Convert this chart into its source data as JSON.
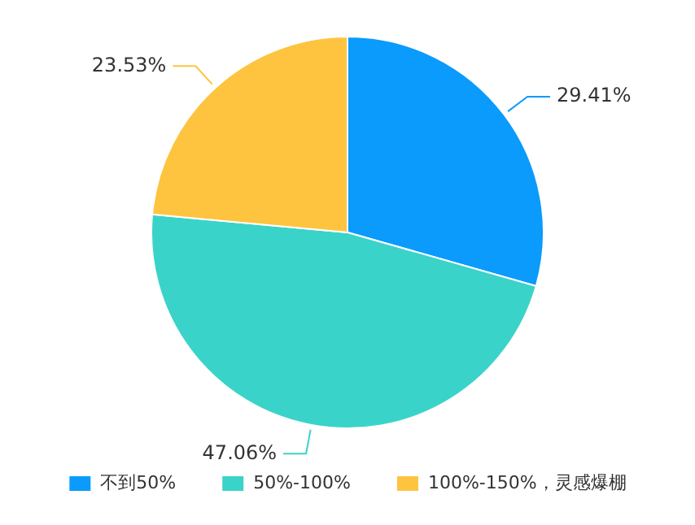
{
  "chart_data": {
    "type": "pie",
    "categories": [
      "不到50%",
      "50%-100%",
      "100%-150%，灵感爆棚"
    ],
    "values": [
      29.41,
      47.06,
      23.53
    ],
    "colors": [
      "#0a9bfc",
      "#3ad3c9",
      "#fec43f"
    ],
    "value_labels": [
      "29.41%",
      "47.06%",
      "23.53%"
    ],
    "legend": "bottom"
  }
}
